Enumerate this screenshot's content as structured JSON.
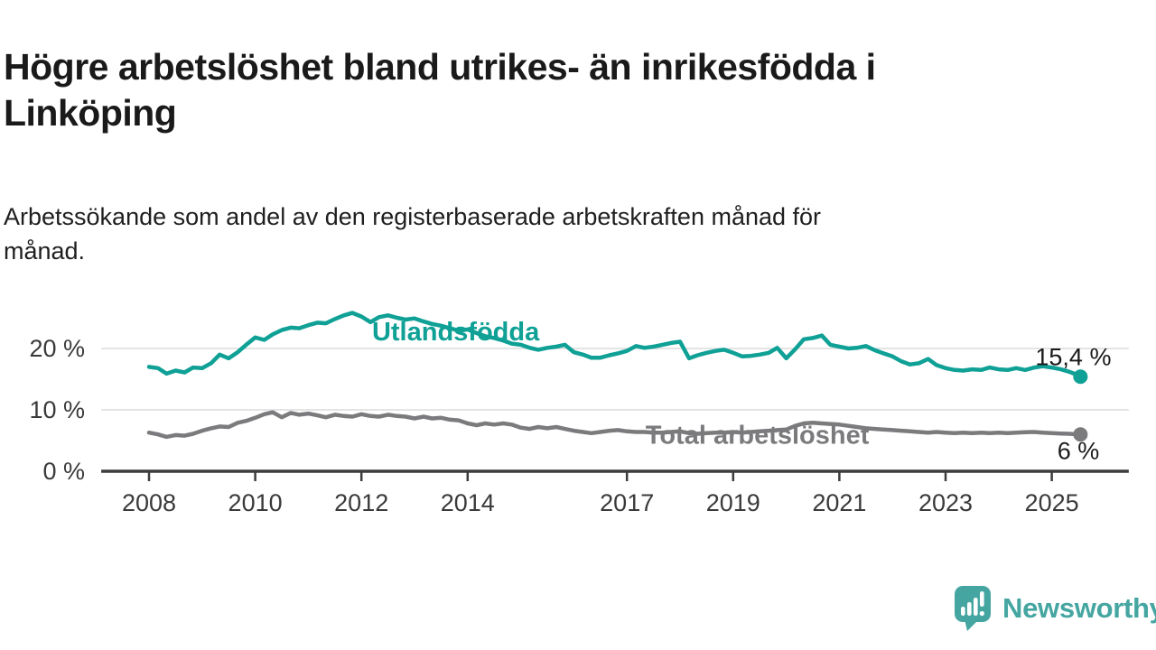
{
  "header": {
    "title": "Högre arbetslöshet bland utrikes- än inrikesfödda i Linköping",
    "subtitle": "Arbetssökande som andel av den registerbaserade arbetskraften månad för månad."
  },
  "chart_data": {
    "type": "line",
    "title_lines": [
      "Högre arbetslöshet bland utrikes- än inrikesfödda i",
      "Linköping"
    ],
    "subtitle_lines": [
      "Arbetssökande som andel av den registerbaserade arbetskraften månad för",
      "månad."
    ],
    "xlabel": "",
    "ylabel": "",
    "xlim": [
      2007.1,
      2026.45
    ],
    "ylim": [
      0,
      28
    ],
    "grid": "horizontal",
    "grid_color": "#dcdcdc",
    "axis_color": "#3c3c3c",
    "tick_label_color": "#3a3a3a",
    "end_label_color": "#1a1a1a",
    "x_ticks": [
      {
        "value": 2008,
        "label": "2008"
      },
      {
        "value": 2010,
        "label": "2010"
      },
      {
        "value": 2012,
        "label": "2012"
      },
      {
        "value": 2014,
        "label": "2014"
      },
      {
        "value": 2017,
        "label": "2017"
      },
      {
        "value": 2019,
        "label": "2019"
      },
      {
        "value": 2021,
        "label": "2021"
      },
      {
        "value": 2023,
        "label": "2023"
      },
      {
        "value": 2025,
        "label": "2025"
      }
    ],
    "y_ticks": [
      {
        "value": 20,
        "label": "20 %"
      },
      {
        "value": 10,
        "label": "10 %"
      },
      {
        "value": 0,
        "label": "0 %"
      }
    ],
    "series": [
      {
        "id": "utlandsfodda",
        "name": "Utlandsfödda",
        "color": "#0fa096",
        "end_label": "15,4 %",
        "end_value": 15.4,
        "label_anchor": {
          "t": 2012.2,
          "pct": 21.3,
          "align": "start"
        },
        "end_label_anchor": {
          "t": 2026.12,
          "pct": 17.3,
          "align": "end"
        },
        "points": [
          [
            2008.0,
            17.0
          ],
          [
            2008.17,
            16.8
          ],
          [
            2008.33,
            15.9
          ],
          [
            2008.5,
            16.4
          ],
          [
            2008.67,
            16.1
          ],
          [
            2008.83,
            16.9
          ],
          [
            2009.0,
            16.8
          ],
          [
            2009.17,
            17.6
          ],
          [
            2009.33,
            19.0
          ],
          [
            2009.5,
            18.4
          ],
          [
            2009.67,
            19.4
          ],
          [
            2009.83,
            20.6
          ],
          [
            2010.0,
            21.8
          ],
          [
            2010.17,
            21.4
          ],
          [
            2010.33,
            22.3
          ],
          [
            2010.5,
            23.0
          ],
          [
            2010.67,
            23.4
          ],
          [
            2010.83,
            23.3
          ],
          [
            2011.0,
            23.8
          ],
          [
            2011.17,
            24.2
          ],
          [
            2011.33,
            24.1
          ],
          [
            2011.5,
            24.8
          ],
          [
            2011.67,
            25.4
          ],
          [
            2011.83,
            25.8
          ],
          [
            2012.0,
            25.2
          ],
          [
            2012.17,
            24.3
          ],
          [
            2012.33,
            25.1
          ],
          [
            2012.5,
            25.4
          ],
          [
            2012.67,
            25.0
          ],
          [
            2012.83,
            24.7
          ],
          [
            2013.0,
            24.9
          ],
          [
            2013.17,
            24.4
          ],
          [
            2013.33,
            24.0
          ],
          [
            2013.5,
            23.7
          ],
          [
            2013.67,
            23.3
          ],
          [
            2013.83,
            22.9
          ],
          [
            2014.0,
            23.1
          ],
          [
            2014.17,
            22.5
          ],
          [
            2014.33,
            22.0
          ],
          [
            2014.5,
            21.7
          ],
          [
            2014.67,
            21.3
          ],
          [
            2014.83,
            20.8
          ],
          [
            2015.0,
            20.6
          ],
          [
            2015.17,
            20.1
          ],
          [
            2015.33,
            19.8
          ],
          [
            2015.5,
            20.1
          ],
          [
            2015.67,
            20.3
          ],
          [
            2015.83,
            20.6
          ],
          [
            2016.0,
            19.4
          ],
          [
            2016.17,
            19.0
          ],
          [
            2016.33,
            18.5
          ],
          [
            2016.5,
            18.5
          ],
          [
            2016.67,
            18.9
          ],
          [
            2016.83,
            19.2
          ],
          [
            2017.0,
            19.6
          ],
          [
            2017.17,
            20.4
          ],
          [
            2017.33,
            20.1
          ],
          [
            2017.5,
            20.3
          ],
          [
            2017.67,
            20.6
          ],
          [
            2017.83,
            20.9
          ],
          [
            2018.0,
            21.1
          ],
          [
            2018.17,
            18.4
          ],
          [
            2018.33,
            18.9
          ],
          [
            2018.5,
            19.3
          ],
          [
            2018.67,
            19.6
          ],
          [
            2018.83,
            19.8
          ],
          [
            2019.0,
            19.3
          ],
          [
            2019.17,
            18.7
          ],
          [
            2019.33,
            18.8
          ],
          [
            2019.5,
            19.0
          ],
          [
            2019.67,
            19.3
          ],
          [
            2019.83,
            20.1
          ],
          [
            2020.0,
            18.4
          ],
          [
            2020.17,
            19.9
          ],
          [
            2020.33,
            21.5
          ],
          [
            2020.5,
            21.7
          ],
          [
            2020.67,
            22.1
          ],
          [
            2020.83,
            20.6
          ],
          [
            2021.0,
            20.3
          ],
          [
            2021.17,
            20.0
          ],
          [
            2021.33,
            20.1
          ],
          [
            2021.5,
            20.4
          ],
          [
            2021.67,
            19.7
          ],
          [
            2021.83,
            19.2
          ],
          [
            2022.0,
            18.7
          ],
          [
            2022.17,
            17.9
          ],
          [
            2022.33,
            17.4
          ],
          [
            2022.5,
            17.6
          ],
          [
            2022.67,
            18.3
          ],
          [
            2022.83,
            17.3
          ],
          [
            2023.0,
            16.8
          ],
          [
            2023.17,
            16.5
          ],
          [
            2023.33,
            16.4
          ],
          [
            2023.5,
            16.6
          ],
          [
            2023.67,
            16.5
          ],
          [
            2023.83,
            16.9
          ],
          [
            2024.0,
            16.6
          ],
          [
            2024.17,
            16.5
          ],
          [
            2024.33,
            16.8
          ],
          [
            2024.5,
            16.5
          ],
          [
            2024.67,
            16.9
          ],
          [
            2024.83,
            17.1
          ],
          [
            2025.0,
            16.9
          ],
          [
            2025.17,
            16.6
          ],
          [
            2025.33,
            16.2
          ],
          [
            2025.42,
            15.9
          ],
          [
            2025.54,
            15.4
          ]
        ]
      },
      {
        "id": "total",
        "name": "Total arbetslöshet",
        "color": "#7b7b7e",
        "end_label": "6 %",
        "end_value": 6.0,
        "label_anchor": {
          "t": 2017.35,
          "pct": 4.5,
          "align": "start"
        },
        "end_label_anchor": {
          "t": 2025.5,
          "pct": 2.0,
          "align": "middle"
        },
        "points": [
          [
            2008.0,
            6.3
          ],
          [
            2008.17,
            6.0
          ],
          [
            2008.33,
            5.6
          ],
          [
            2008.5,
            5.9
          ],
          [
            2008.67,
            5.8
          ],
          [
            2008.83,
            6.1
          ],
          [
            2009.0,
            6.6
          ],
          [
            2009.17,
            7.0
          ],
          [
            2009.33,
            7.3
          ],
          [
            2009.5,
            7.2
          ],
          [
            2009.67,
            7.9
          ],
          [
            2009.83,
            8.2
          ],
          [
            2010.0,
            8.7
          ],
          [
            2010.17,
            9.3
          ],
          [
            2010.33,
            9.6
          ],
          [
            2010.5,
            8.8
          ],
          [
            2010.67,
            9.5
          ],
          [
            2010.83,
            9.2
          ],
          [
            2011.0,
            9.4
          ],
          [
            2011.17,
            9.1
          ],
          [
            2011.33,
            8.8
          ],
          [
            2011.5,
            9.2
          ],
          [
            2011.67,
            9.0
          ],
          [
            2011.83,
            8.9
          ],
          [
            2012.0,
            9.3
          ],
          [
            2012.17,
            9.0
          ],
          [
            2012.33,
            8.9
          ],
          [
            2012.5,
            9.2
          ],
          [
            2012.67,
            9.0
          ],
          [
            2012.83,
            8.9
          ],
          [
            2013.0,
            8.6
          ],
          [
            2013.17,
            8.9
          ],
          [
            2013.33,
            8.6
          ],
          [
            2013.5,
            8.7
          ],
          [
            2013.67,
            8.4
          ],
          [
            2013.83,
            8.3
          ],
          [
            2014.0,
            7.8
          ],
          [
            2014.17,
            7.5
          ],
          [
            2014.33,
            7.8
          ],
          [
            2014.5,
            7.6
          ],
          [
            2014.67,
            7.8
          ],
          [
            2014.83,
            7.6
          ],
          [
            2015.0,
            7.1
          ],
          [
            2015.17,
            6.9
          ],
          [
            2015.33,
            7.2
          ],
          [
            2015.5,
            7.0
          ],
          [
            2015.67,
            7.2
          ],
          [
            2015.83,
            6.9
          ],
          [
            2016.0,
            6.6
          ],
          [
            2016.17,
            6.4
          ],
          [
            2016.33,
            6.2
          ],
          [
            2016.5,
            6.4
          ],
          [
            2016.67,
            6.6
          ],
          [
            2016.83,
            6.7
          ],
          [
            2017.0,
            6.5
          ],
          [
            2017.17,
            6.4
          ],
          [
            2017.33,
            6.4
          ],
          [
            2017.5,
            6.3
          ],
          [
            2017.67,
            6.3
          ],
          [
            2017.83,
            6.4
          ],
          [
            2018.0,
            6.5
          ],
          [
            2018.17,
            6.2
          ],
          [
            2018.33,
            6.1
          ],
          [
            2018.5,
            6.2
          ],
          [
            2018.67,
            6.3
          ],
          [
            2018.83,
            6.3
          ],
          [
            2019.0,
            6.4
          ],
          [
            2019.17,
            6.3
          ],
          [
            2019.33,
            6.4
          ],
          [
            2019.5,
            6.5
          ],
          [
            2019.67,
            6.6
          ],
          [
            2019.83,
            6.7
          ],
          [
            2020.0,
            6.8
          ],
          [
            2020.17,
            7.4
          ],
          [
            2020.33,
            7.8
          ],
          [
            2020.5,
            7.9
          ],
          [
            2020.67,
            7.8
          ],
          [
            2020.83,
            7.7
          ],
          [
            2021.0,
            7.6
          ],
          [
            2021.17,
            7.4
          ],
          [
            2021.33,
            7.2
          ],
          [
            2021.5,
            7.0
          ],
          [
            2021.67,
            6.9
          ],
          [
            2021.83,
            6.8
          ],
          [
            2022.0,
            6.7
          ],
          [
            2022.17,
            6.6
          ],
          [
            2022.33,
            6.5
          ],
          [
            2022.5,
            6.4
          ],
          [
            2022.67,
            6.3
          ],
          [
            2022.83,
            6.4
          ],
          [
            2023.0,
            6.3
          ],
          [
            2023.17,
            6.2
          ],
          [
            2023.33,
            6.3
          ],
          [
            2023.5,
            6.2
          ],
          [
            2023.67,
            6.3
          ],
          [
            2023.83,
            6.2
          ],
          [
            2024.0,
            6.3
          ],
          [
            2024.17,
            6.2
          ],
          [
            2024.33,
            6.3
          ],
          [
            2024.5,
            6.35
          ],
          [
            2024.67,
            6.4
          ],
          [
            2024.83,
            6.3
          ],
          [
            2025.0,
            6.2
          ],
          [
            2025.17,
            6.15
          ],
          [
            2025.33,
            6.1
          ],
          [
            2025.42,
            6.05
          ],
          [
            2025.54,
            6.0
          ]
        ]
      }
    ]
  },
  "branding": {
    "name": "Newsworthy",
    "color": "#45a6a1",
    "icon": "newsworthy-speech-bubble-bar-chart-icon"
  }
}
